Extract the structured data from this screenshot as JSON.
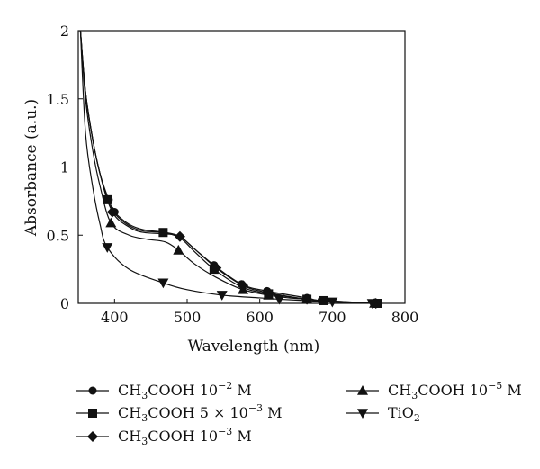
{
  "chart_data": {
    "type": "line",
    "xlabel": "Wavelength (nm)",
    "ylabel": "Absorbance (a.u.)",
    "xlim": [
      350,
      800
    ],
    "ylim": [
      0,
      2
    ],
    "xticks": [
      400,
      500,
      600,
      700,
      800
    ],
    "yticks": [
      0,
      0.5,
      1,
      1.5,
      2
    ],
    "ytick_labels": [
      "0",
      "0.5",
      "1",
      "1.5",
      "2"
    ],
    "grid": false,
    "legend_position": "below",
    "series": [
      {
        "name": "CH3COOH 10−2 M",
        "formula": {
          "a": "CH",
          "sub1": "3",
          "b": "COOH 10",
          "sup": "−2",
          "c": " M"
        },
        "marker": "circle",
        "x": [
          353,
          360,
          370,
          380,
          392,
          400,
          420,
          440,
          470,
          490,
          510,
          537,
          575,
          610,
          665,
          685,
          760
        ],
        "y": [
          2.0,
          1.55,
          1.2,
          0.95,
          0.76,
          0.67,
          0.58,
          0.54,
          0.52,
          0.49,
          0.4,
          0.28,
          0.14,
          0.09,
          0.04,
          0.02,
          0.0
        ],
        "markers_x": [
          392,
          400,
          537,
          575,
          610,
          665,
          685,
          760
        ],
        "markers_y": [
          0.76,
          0.67,
          0.28,
          0.14,
          0.09,
          0.04,
          0.02,
          0.0
        ]
      },
      {
        "name": "CH3COOH 5 × 10−3 M",
        "formula": {
          "a": "CH",
          "sub1": "3",
          "b": "COOH 5 × 10",
          "sup": "−3",
          "c": " M"
        },
        "marker": "square",
        "x": [
          353,
          360,
          370,
          380,
          390,
          400,
          420,
          440,
          467,
          490,
          510,
          537,
          575,
          612,
          665,
          688,
          762
        ],
        "y": [
          2.0,
          1.55,
          1.2,
          0.95,
          0.76,
          0.66,
          0.57,
          0.53,
          0.52,
          0.48,
          0.38,
          0.25,
          0.12,
          0.07,
          0.03,
          0.02,
          0.0
        ],
        "markers_x": [
          390,
          467,
          537,
          612,
          665,
          688,
          762
        ],
        "markers_y": [
          0.76,
          0.52,
          0.25,
          0.07,
          0.03,
          0.02,
          0.0
        ]
      },
      {
        "name": "CH3COOH 10−3 M",
        "formula": {
          "a": "CH",
          "sub1": "3",
          "b": "COOH 10",
          "sup": "−3",
          "c": " M"
        },
        "marker": "diamond",
        "x": [
          353,
          360,
          370,
          380,
          397,
          420,
          440,
          470,
          490,
          510,
          540,
          577,
          610,
          665,
          690,
          760
        ],
        "y": [
          2.0,
          1.55,
          1.2,
          0.95,
          0.67,
          0.56,
          0.52,
          0.51,
          0.49,
          0.4,
          0.26,
          0.13,
          0.08,
          0.03,
          0.02,
          0.0
        ],
        "markers_x": [
          397,
          490,
          540,
          577,
          610,
          665,
          760
        ],
        "markers_y": [
          0.67,
          0.49,
          0.26,
          0.13,
          0.08,
          0.03,
          0.0
        ]
      },
      {
        "name": "CH3COOH 10−5 M",
        "formula": {
          "a": "CH",
          "sub1": "3",
          "b": "COOH 10",
          "sup": "−5",
          "c": " M"
        },
        "marker": "triangle-up",
        "x": [
          353,
          360,
          370,
          380,
          395,
          420,
          445,
          470,
          488,
          510,
          540,
          577,
          612,
          640,
          665,
          700,
          758
        ],
        "y": [
          2.0,
          1.5,
          1.12,
          0.86,
          0.59,
          0.5,
          0.47,
          0.45,
          0.39,
          0.29,
          0.19,
          0.1,
          0.06,
          0.04,
          0.03,
          0.01,
          0.0
        ],
        "markers_x": [
          395,
          488,
          577,
          612,
          665,
          758
        ],
        "markers_y": [
          0.59,
          0.39,
          0.1,
          0.06,
          0.03,
          0.0
        ]
      },
      {
        "name": "TiO2",
        "formula": {
          "a": "TiO",
          "sub1": "2",
          "b": "",
          "sup": "",
          "c": ""
        },
        "marker": "triangle-down",
        "x": [
          353,
          360,
          370,
          380,
          390,
          420,
          467,
          500,
          548,
          600,
          627,
          665,
          700,
          755
        ],
        "y": [
          2.0,
          1.25,
          0.85,
          0.58,
          0.41,
          0.25,
          0.15,
          0.1,
          0.06,
          0.04,
          0.03,
          0.02,
          0.01,
          0.0
        ],
        "markers_x": [
          390,
          467,
          548,
          627,
          700,
          755
        ],
        "markers_y": [
          0.41,
          0.15,
          0.06,
          0.03,
          0.01,
          0.0
        ]
      }
    ]
  }
}
